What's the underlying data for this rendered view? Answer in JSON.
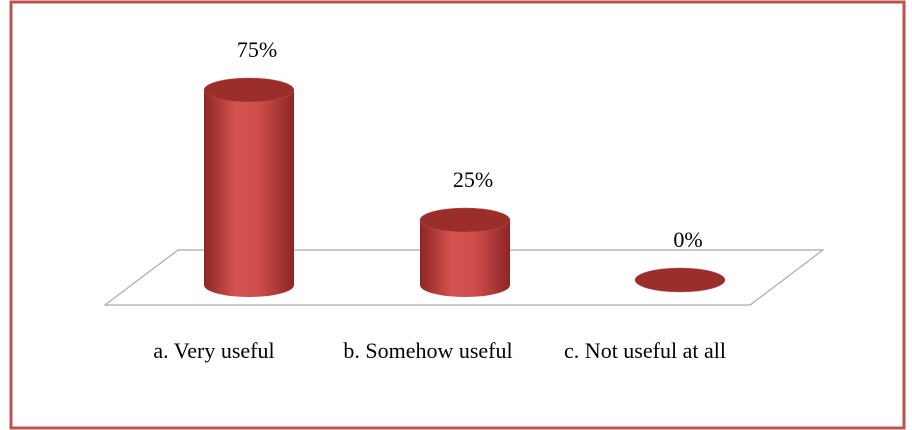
{
  "chart_data": {
    "type": "bar3d",
    "categories": [
      "a. Very useful",
      "b. Somehow useful",
      "c. Not useful at all"
    ],
    "values": [
      75,
      25,
      0
    ],
    "value_labels": [
      "75%",
      "25%",
      "0%"
    ],
    "color": "#c0504d"
  }
}
